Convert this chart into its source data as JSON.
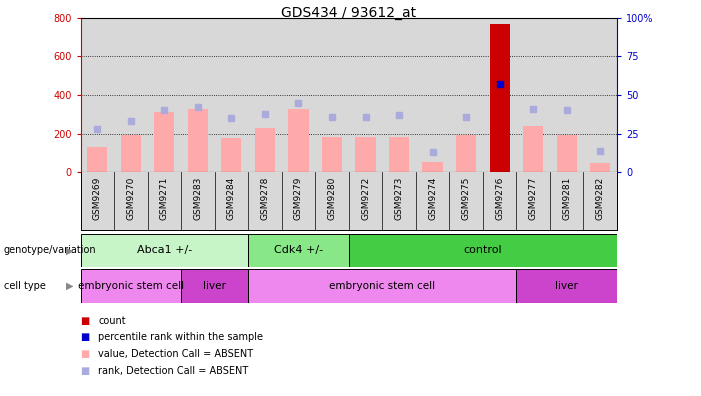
{
  "title": "GDS434 / 93612_at",
  "samples": [
    "GSM9269",
    "GSM9270",
    "GSM9271",
    "GSM9283",
    "GSM9284",
    "GSM9278",
    "GSM9279",
    "GSM9280",
    "GSM9272",
    "GSM9273",
    "GSM9274",
    "GSM9275",
    "GSM9276",
    "GSM9277",
    "GSM9281",
    "GSM9282"
  ],
  "pink_bar_values": [
    130,
    195,
    310,
    330,
    180,
    230,
    330,
    185,
    185,
    185,
    55,
    195,
    770,
    240,
    195,
    50
  ],
  "blue_square_values": [
    28,
    33,
    40,
    42,
    35,
    38,
    45,
    36,
    36,
    37,
    13,
    36,
    57,
    41,
    40,
    14
  ],
  "red_bar_index": 12,
  "blue_dot_index": 12,
  "ylim_left": [
    0,
    800
  ],
  "ylim_right": [
    0,
    100
  ],
  "yticks_left": [
    0,
    200,
    400,
    600,
    800
  ],
  "yticks_right": [
    0,
    25,
    50,
    75,
    100
  ],
  "ytick_labels_right": [
    "0",
    "25",
    "50",
    "75",
    "100%"
  ],
  "genotype_groups": [
    {
      "label": "Abca1 +/-",
      "start": 0,
      "end": 5,
      "color": "#c8f5c8"
    },
    {
      "label": "Cdk4 +/-",
      "start": 5,
      "end": 8,
      "color": "#88e888"
    },
    {
      "label": "control",
      "start": 8,
      "end": 16,
      "color": "#44cc44"
    }
  ],
  "celltype_groups": [
    {
      "label": "embryonic stem cell",
      "start": 0,
      "end": 3,
      "color": "#ee88ee"
    },
    {
      "label": "liver",
      "start": 3,
      "end": 5,
      "color": "#cc44cc"
    },
    {
      "label": "embryonic stem cell",
      "start": 5,
      "end": 13,
      "color": "#ee88ee"
    },
    {
      "label": "liver",
      "start": 13,
      "end": 16,
      "color": "#cc44cc"
    }
  ],
  "legend_items": [
    {
      "label": "count",
      "color": "#cc0000"
    },
    {
      "label": "percentile rank within the sample",
      "color": "#0000cc"
    },
    {
      "label": "value, Detection Call = ABSENT",
      "color": "#ffaaaa"
    },
    {
      "label": "rank, Detection Call = ABSENT",
      "color": "#aaaadd"
    }
  ],
  "pink_bar_color": "#ffaaaa",
  "red_bar_color": "#cc0000",
  "blue_square_color": "#aaaadd",
  "blue_dot_color": "#0000cc",
  "left_axis_color": "#cc0000",
  "right_axis_color": "#0000cc",
  "background_color": "#ffffff",
  "plot_bg_color": "#d8d8d8"
}
